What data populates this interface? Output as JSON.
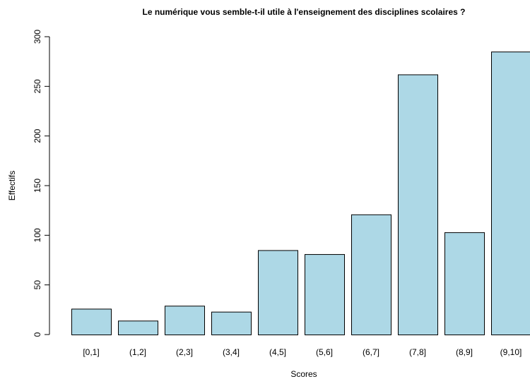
{
  "chart_data": {
    "type": "bar",
    "title": "Le numérique vous semble-t-il utile à l'enseignement des disciplines scolaires ?",
    "x_label": "Scores",
    "y_label": "Effectifs",
    "categories": [
      "[0,1]",
      "(1,2]",
      "(2,3]",
      "(3,4]",
      "(4,5]",
      "(5,6]",
      "(6,7]",
      "(7,8]",
      "(8,9]",
      "(9,10]"
    ],
    "values": [
      26,
      14,
      29,
      23,
      85,
      81,
      121,
      262,
      103,
      285
    ],
    "color": "#add8e6",
    "ylim": [
      0,
      300
    ],
    "yticks": [
      0,
      50,
      100,
      150,
      200,
      250,
      300
    ]
  }
}
